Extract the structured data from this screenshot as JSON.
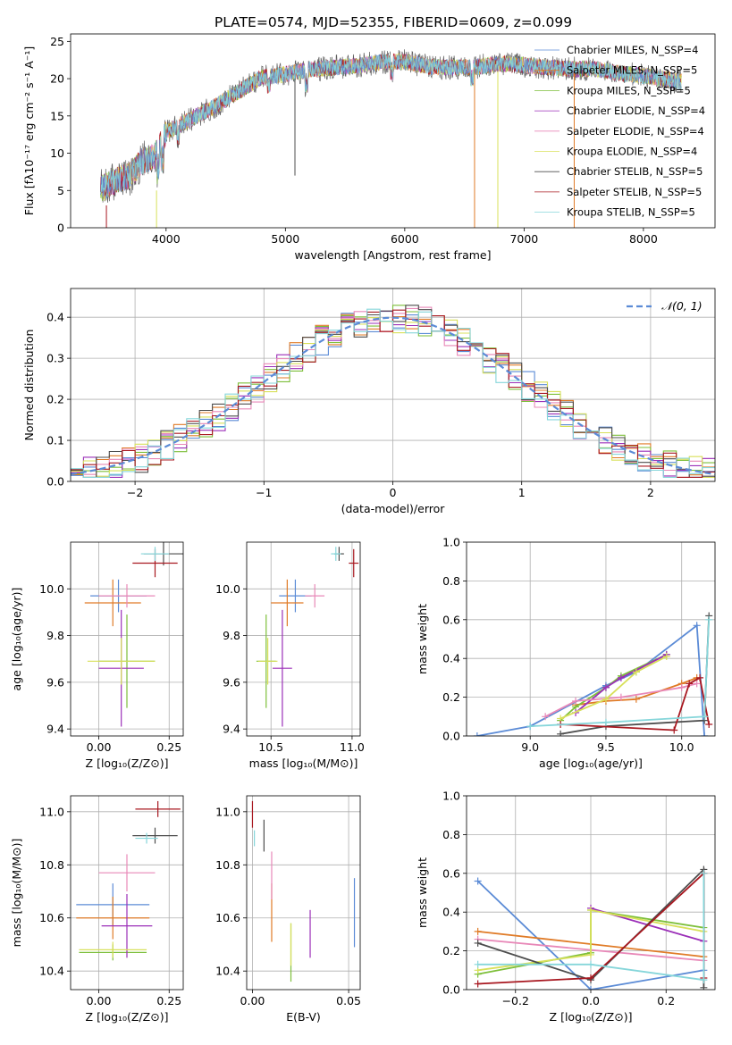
{
  "title": "PLATE=0574, MJD=52355, FIBERID=0609, z=0.099",
  "colors": [
    "#5b8bd6",
    "#e07b27",
    "#7dbf3a",
    "#9b2fb8",
    "#e888b8",
    "#d8e05a",
    "#4d4d4d",
    "#a81820",
    "#86d6da"
  ],
  "chart_data": [
    {
      "type": "line",
      "title": "PLATE=0574, MJD=52355, FIBERID=0609, z=0.099",
      "xlabel": "wavelength [Angstrom, rest frame]",
      "ylabel": "Flux [fλ10⁻¹⁷ erg cm⁻² s⁻¹ A⁻¹]",
      "xlim": [
        3200,
        8600
      ],
      "ylim": [
        0,
        26
      ],
      "xticks": [
        4000,
        5000,
        6000,
        7000,
        8000
      ],
      "yticks": [
        0,
        5,
        10,
        15,
        20,
        25
      ],
      "legend_position": "right",
      "series": [
        {
          "name": "Chabrier MILES, N_SSP=4"
        },
        {
          "name": "Salpeter MILES, N_SSP=5"
        },
        {
          "name": "Kroupa MILES, N_SSP=5"
        },
        {
          "name": "Chabrier ELODIE, N_SSP=4"
        },
        {
          "name": "Salpeter ELODIE, N_SSP=4"
        },
        {
          "name": "Kroupa ELODIE, N_SSP=4"
        },
        {
          "name": "Chabrier STELIB, N_SSP=5"
        },
        {
          "name": "Salpeter STELIB, N_SSP=5"
        },
        {
          "name": "Kroupa STELIB, N_SSP=5"
        }
      ],
      "spectrum_shape": {
        "x": [
          3450,
          3600,
          3700,
          3800,
          3900,
          4000,
          4200,
          4400,
          4600,
          4800,
          5000,
          5200,
          5400,
          5600,
          5800,
          6000,
          6200,
          6400,
          6600,
          6800,
          7000,
          7200,
          7400,
          7600,
          7800,
          8000,
          8200,
          8300
        ],
        "y": [
          5.2,
          6.5,
          7.0,
          9.0,
          9.5,
          12.8,
          14.5,
          16.2,
          18.2,
          20.2,
          20.6,
          21.2,
          21.5,
          21.7,
          22.2,
          22.3,
          21.6,
          21.5,
          21.6,
          22.0,
          21.8,
          21.5,
          21.3,
          21.3,
          20.7,
          20.4,
          19.9,
          19.6
        ]
      }
    },
    {
      "type": "line",
      "xlabel": "(data-model)/error",
      "ylabel": "Normed distribution",
      "xlim": [
        -2.5,
        2.5
      ],
      "ylim": [
        0,
        0.47
      ],
      "xticks": [
        -2,
        -1,
        0,
        1,
        2
      ],
      "yticks": [
        0.0,
        0.1,
        0.2,
        0.3,
        0.4
      ],
      "legend_position": "top-right",
      "series": [
        {
          "name": "𝒩(0, 1)",
          "mean": 0,
          "sigma": 1
        }
      ]
    },
    {
      "type": "scatter",
      "xlabel": "Z [log₁₀(Z/Z⊙)]",
      "ylabel": "age  [log₁₀(age/yr)]",
      "xlim": [
        -0.1,
        0.3
      ],
      "ylim": [
        9.37,
        10.2
      ],
      "xticks": [
        0.0,
        0.25
      ],
      "yticks": [
        9.4,
        9.6,
        9.8,
        10.0
      ],
      "points": [
        {
          "x": 0.07,
          "y": 9.97,
          "xerr": 0.1,
          "yerr": 0.07
        },
        {
          "x": 0.05,
          "y": 9.94,
          "xerr": 0.1,
          "yerr": 0.1
        },
        {
          "x": 0.1,
          "y": 9.69,
          "xerr": 0.1,
          "yerr": 0.2
        },
        {
          "x": 0.08,
          "y": 9.66,
          "xerr": 0.08,
          "yerr": 0.25
        },
        {
          "x": 0.1,
          "y": 9.97,
          "xerr": 0.1,
          "yerr": 0.05
        },
        {
          "x": 0.08,
          "y": 9.69,
          "xerr": 0.12,
          "yerr": 0.1
        },
        {
          "x": 0.23,
          "y": 10.15,
          "xerr": 0.07,
          "yerr": 0.05
        },
        {
          "x": 0.2,
          "y": 10.11,
          "xerr": 0.08,
          "yerr": 0.06
        },
        {
          "x": 0.2,
          "y": 10.15,
          "xerr": 0.05,
          "yerr": 0.03
        }
      ]
    },
    {
      "type": "scatter",
      "xlabel": "mass [log₁₀(M/M⊙)]",
      "xlim": [
        10.35,
        11.05
      ],
      "ylim": [
        9.37,
        10.2
      ],
      "xticks": [
        10.5,
        11.0
      ],
      "yticks": [
        9.4,
        9.6,
        9.8,
        10.0
      ],
      "points": [
        {
          "x": 10.65,
          "y": 9.97,
          "xerr": 0.1,
          "yerr": 0.07
        },
        {
          "x": 10.6,
          "y": 9.94,
          "xerr": 0.1,
          "yerr": 0.1
        },
        {
          "x": 10.47,
          "y": 9.69,
          "xerr": 0.06,
          "yerr": 0.2
        },
        {
          "x": 10.57,
          "y": 9.66,
          "xerr": 0.06,
          "yerr": 0.25
        },
        {
          "x": 10.77,
          "y": 9.97,
          "xerr": 0.06,
          "yerr": 0.05
        },
        {
          "x": 10.48,
          "y": 9.69,
          "xerr": 0.06,
          "yerr": 0.1
        },
        {
          "x": 10.92,
          "y": 10.15,
          "xerr": 0.03,
          "yerr": 0.03
        },
        {
          "x": 11.01,
          "y": 10.11,
          "xerr": 0.03,
          "yerr": 0.06
        },
        {
          "x": 10.9,
          "y": 10.15,
          "xerr": 0.03,
          "yerr": 0.03
        }
      ]
    },
    {
      "type": "line",
      "xlabel": "age  [log₁₀(age/yr)]",
      "ylabel": "mass weight",
      "xlim": [
        8.58,
        10.22
      ],
      "ylim": [
        0,
        1
      ],
      "xticks": [
        9.0,
        9.5,
        10.0
      ],
      "yticks": [
        0.0,
        0.2,
        0.4,
        0.6,
        0.8,
        1.0
      ],
      "series": [
        {
          "x": [
            8.65,
            9.0,
            9.5,
            9.7,
            10.1,
            10.15
          ],
          "y": [
            0.0,
            0.05,
            0.26,
            0.33,
            0.57,
            0.0
          ]
        },
        {
          "x": [
            9.3,
            9.5,
            9.7,
            10.0,
            10.1
          ],
          "y": [
            0.16,
            0.18,
            0.19,
            0.27,
            0.3
          ]
        },
        {
          "x": [
            9.2,
            9.3,
            9.5,
            9.6,
            9.9
          ],
          "y": [
            0.08,
            0.15,
            0.25,
            0.31,
            0.42
          ]
        },
        {
          "x": [
            9.3,
            9.5,
            9.6,
            9.9
          ],
          "y": [
            0.12,
            0.25,
            0.3,
            0.42
          ]
        },
        {
          "x": [
            9.1,
            9.3,
            9.6,
            10.0,
            10.1
          ],
          "y": [
            0.1,
            0.18,
            0.2,
            0.25,
            0.27
          ]
        },
        {
          "x": [
            9.2,
            9.5,
            9.7,
            9.9
          ],
          "y": [
            0.09,
            0.19,
            0.33,
            0.41
          ]
        },
        {
          "x": [
            9.2,
            9.5,
            10.15,
            10.18
          ],
          "y": [
            0.01,
            0.05,
            0.08,
            0.62
          ]
        },
        {
          "x": [
            9.2,
            9.95,
            10.05,
            10.12,
            10.18
          ],
          "y": [
            0.06,
            0.03,
            0.27,
            0.3,
            0.06
          ]
        },
        {
          "x": [
            9.0,
            9.5,
            10.15,
            10.18
          ],
          "y": [
            0.05,
            0.07,
            0.1,
            0.6
          ]
        }
      ]
    },
    {
      "type": "scatter",
      "xlabel": "Z [log₁₀(Z/Z⊙)]",
      "ylabel": "mass [log₁₀(M/M⊙)]",
      "xlim": [
        -0.1,
        0.3
      ],
      "ylim": [
        10.33,
        11.06
      ],
      "xticks": [
        0.0,
        0.25
      ],
      "yticks": [
        10.4,
        10.6,
        10.8,
        11.0
      ],
      "points": [
        {
          "x": 0.05,
          "y": 10.65,
          "xerr": 0.13,
          "yerr": 0.08
        },
        {
          "x": 0.05,
          "y": 10.6,
          "xerr": 0.13,
          "yerr": 0.08
        },
        {
          "x": 0.05,
          "y": 10.47,
          "xerr": 0.12,
          "yerr": 0.03
        },
        {
          "x": 0.1,
          "y": 10.57,
          "xerr": 0.09,
          "yerr": 0.12
        },
        {
          "x": 0.1,
          "y": 10.77,
          "xerr": 0.1,
          "yerr": 0.07
        },
        {
          "x": 0.05,
          "y": 10.48,
          "xerr": 0.12,
          "yerr": 0.03
        },
        {
          "x": 0.2,
          "y": 10.91,
          "xerr": 0.08,
          "yerr": 0.03
        },
        {
          "x": 0.21,
          "y": 11.01,
          "xerr": 0.08,
          "yerr": 0.03
        },
        {
          "x": 0.17,
          "y": 10.9,
          "xerr": 0.04,
          "yerr": 0.02
        }
      ]
    },
    {
      "type": "scatter",
      "xlabel": "E(B-V)",
      "xlim": [
        -0.003,
        0.056
      ],
      "ylim": [
        10.33,
        11.06
      ],
      "xticks": [
        0.0,
        0.05
      ],
      "yticks": [
        10.4,
        10.6,
        10.8,
        11.0
      ],
      "points": [
        {
          "x": 0.053,
          "y": 10.62,
          "xerr": 0,
          "yerr": 0.13
        },
        {
          "x": 0.01,
          "y": 10.62,
          "xerr": 0,
          "yerr": 0.11
        },
        {
          "x": 0.02,
          "y": 10.47,
          "xerr": 0,
          "yerr": 0.11
        },
        {
          "x": 0.03,
          "y": 10.54,
          "xerr": 0,
          "yerr": 0.09
        },
        {
          "x": 0.01,
          "y": 10.76,
          "xerr": 0,
          "yerr": 0.09
        },
        {
          "x": 0.02,
          "y": 10.5,
          "xerr": 0,
          "yerr": 0.08
        },
        {
          "x": 0.006,
          "y": 10.91,
          "xerr": 0,
          "yerr": 0.06
        },
        {
          "x": 0.0,
          "y": 10.99,
          "xerr": 0,
          "yerr": 0.05
        },
        {
          "x": 0.001,
          "y": 10.9,
          "xerr": 0,
          "yerr": 0.03
        }
      ]
    },
    {
      "type": "line",
      "xlabel": "Z [log₁₀(Z/Z⊙)]",
      "ylabel": "mass weight",
      "xlim": [
        -0.33,
        0.33
      ],
      "ylim": [
        0,
        1
      ],
      "xticks": [
        -0.2,
        0.0,
        0.2
      ],
      "yticks": [
        0.0,
        0.2,
        0.4,
        0.6,
        0.8,
        1.0
      ],
      "series": [
        {
          "x": [
            -0.3,
            0.0,
            0.3
          ],
          "y": [
            0.56,
            0.0,
            0.1
          ]
        },
        {
          "x": [
            -0.3,
            0.3
          ],
          "y": [
            0.3,
            0.17
          ]
        },
        {
          "x": [
            -0.3,
            0.0,
            0.0,
            0.3
          ],
          "y": [
            0.08,
            0.19,
            0.41,
            0.32
          ]
        },
        {
          "x": [
            0.0,
            0.3
          ],
          "y": [
            0.42,
            0.25
          ]
        },
        {
          "x": [
            -0.3,
            0.3
          ],
          "y": [
            0.26,
            0.15
          ]
        },
        {
          "x": [
            -0.3,
            0.0,
            0.0,
            0.3
          ],
          "y": [
            0.1,
            0.18,
            0.41,
            0.3
          ]
        },
        {
          "x": [
            -0.3,
            0.0,
            0.3,
            0.3
          ],
          "y": [
            0.24,
            0.05,
            0.62,
            0.01
          ]
        },
        {
          "x": [
            -0.3,
            0.0,
            0.3,
            0.3
          ],
          "y": [
            0.03,
            0.06,
            0.6,
            0.06
          ]
        },
        {
          "x": [
            -0.3,
            0.0,
            0.3,
            0.3
          ],
          "y": [
            0.13,
            0.13,
            0.05,
            0.6
          ]
        }
      ]
    }
  ]
}
